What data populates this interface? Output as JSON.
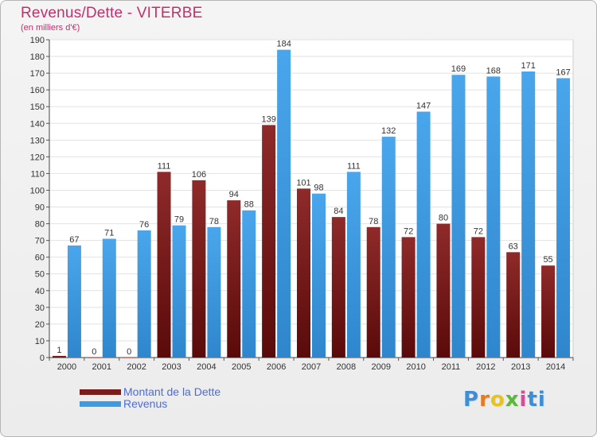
{
  "header": {
    "title": "Revenus/Dette - VITERBE",
    "subtitle": "(en milliers d'€)"
  },
  "colors": {
    "dette": "#7a1c1c",
    "revenus": "#3d9be3",
    "title": "#c0306a"
  },
  "chart_data": {
    "type": "bar",
    "categories": [
      "2000",
      "2001",
      "2002",
      "2003",
      "2004",
      "2005",
      "2006",
      "2007",
      "2008",
      "2009",
      "2010",
      "2011",
      "2012",
      "2013",
      "2014"
    ],
    "series": [
      {
        "name": "Montant de la Dette",
        "values": [
          1,
          0,
          0,
          111,
          106,
          94,
          139,
          101,
          84,
          78,
          72,
          80,
          72,
          63,
          55
        ]
      },
      {
        "name": "Revenus",
        "values": [
          67,
          71,
          76,
          79,
          78,
          88,
          184,
          98,
          111,
          132,
          147,
          169,
          168,
          171,
          167
        ]
      }
    ],
    "ylim": [
      0,
      190
    ],
    "yticks": [
      0,
      10,
      20,
      30,
      40,
      50,
      60,
      70,
      80,
      90,
      100,
      110,
      120,
      130,
      140,
      150,
      160,
      170,
      180,
      190
    ],
    "grid": true,
    "legend_position": "bottom-left"
  },
  "legend": [
    {
      "label": "Montant de la Dette"
    },
    {
      "label": "Revenus"
    }
  ],
  "logo": {
    "letters": [
      "P",
      "r",
      "o",
      "x",
      "i",
      "ti"
    ]
  }
}
